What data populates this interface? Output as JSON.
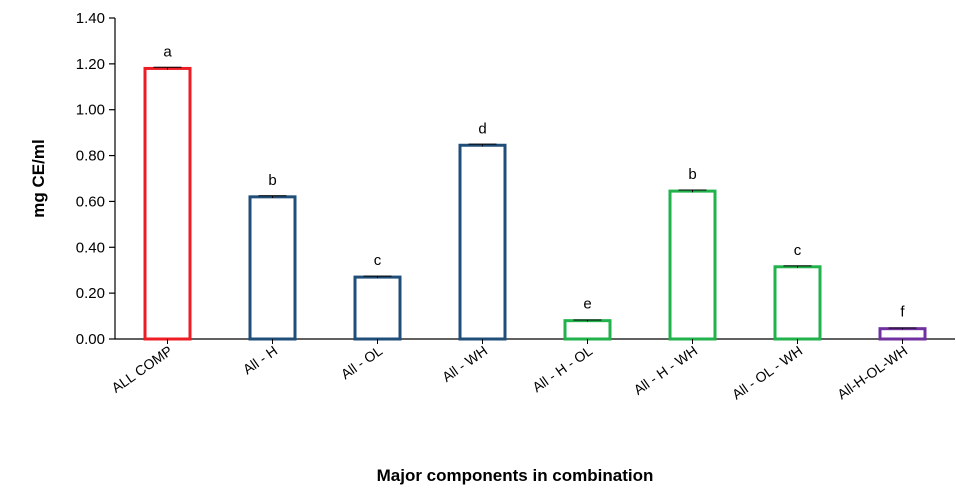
{
  "chart_data": {
    "type": "bar",
    "title": "",
    "xlabel": "Major components in combination",
    "ylabel": "mg CE/ml",
    "ylim": [
      0,
      1.4
    ],
    "yticks": [
      "0.00",
      "0.20",
      "0.40",
      "0.60",
      "0.80",
      "1.00",
      "1.20",
      "1.40"
    ],
    "grid": false,
    "legend": "none",
    "categories": [
      "ALL COMP",
      "All - H",
      "All - OL",
      "All - WH",
      "All - H - OL",
      "All - H - WH",
      "All - OL - WH",
      "All-H-OL-WH"
    ],
    "values": [
      1.18,
      0.62,
      0.27,
      0.845,
      0.08,
      0.645,
      0.315,
      0.045
    ],
    "errors": [
      0.005,
      0.005,
      0.004,
      0.005,
      0.003,
      0.005,
      0.004,
      0.003
    ],
    "significance_letters": [
      "a",
      "b",
      "c",
      "d",
      "e",
      "b",
      "c",
      "f"
    ],
    "bar_colors": [
      "#ee1c25",
      "#1f4e79",
      "#1f4e79",
      "#1f4e79",
      "#22b24c",
      "#22b24c",
      "#22b24c",
      "#7030a0"
    ]
  }
}
